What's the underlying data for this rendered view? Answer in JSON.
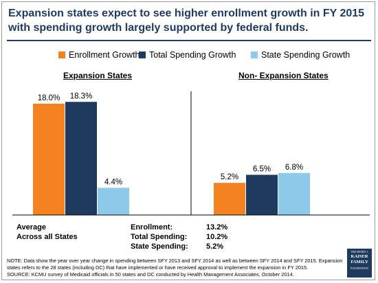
{
  "title": "Expansion states expect to see higher enrollment growth in FY 2015 with spending growth largely supported by federal funds.",
  "legend": [
    {
      "label": "Enrollment Growth",
      "color": "#f58220"
    },
    {
      "label": "Total Spending Growth",
      "color": "#1f3a5f"
    },
    {
      "label": "State Spending Growth",
      "color": "#8ec9e9"
    }
  ],
  "chart_data": {
    "type": "bar",
    "groups": [
      "Expansion States",
      "Non- Expansion States"
    ],
    "series": [
      {
        "name": "Enrollment Growth",
        "values": [
          18.0,
          5.2
        ],
        "labels": [
          "18.0%",
          "5.2%"
        ]
      },
      {
        "name": "Total Spending Growth",
        "values": [
          18.3,
          6.5
        ],
        "labels": [
          "18.3%",
          "6.5%"
        ]
      },
      {
        "name": "State Spending Growth",
        "values": [
          4.4,
          6.8
        ],
        "labels": [
          "4.4%",
          "6.8%"
        ]
      }
    ],
    "ylim": [
      0,
      20
    ],
    "grid": false,
    "legend_position": "top"
  },
  "summary": {
    "heading": [
      "Average",
      "Across all States"
    ],
    "rows": [
      {
        "label": "Enrollment:",
        "value": "13.2%"
      },
      {
        "label": "Total Spending:",
        "value": "10.2%"
      },
      {
        "label": "State Spending:",
        "value": "5.2%"
      }
    ]
  },
  "note": "NOTE: Data show the year over year change in spending between SFY 2013 and SFY 2014 as well as between SFY 2014 and SFY 2015. Expansion states refers to the 28 states (including DC) that have implemented or have received approval to implement the expansion in FY 2015.",
  "source": "SOURCE: KCMU survey of Medicaid officials in 50 states and DC conducted by Health Management Associates, October 2014.",
  "logo": {
    "line1": "THE HENRY J.",
    "line2": "KAISER",
    "line3": "FAMILY",
    "line4": "FOUNDATION"
  }
}
